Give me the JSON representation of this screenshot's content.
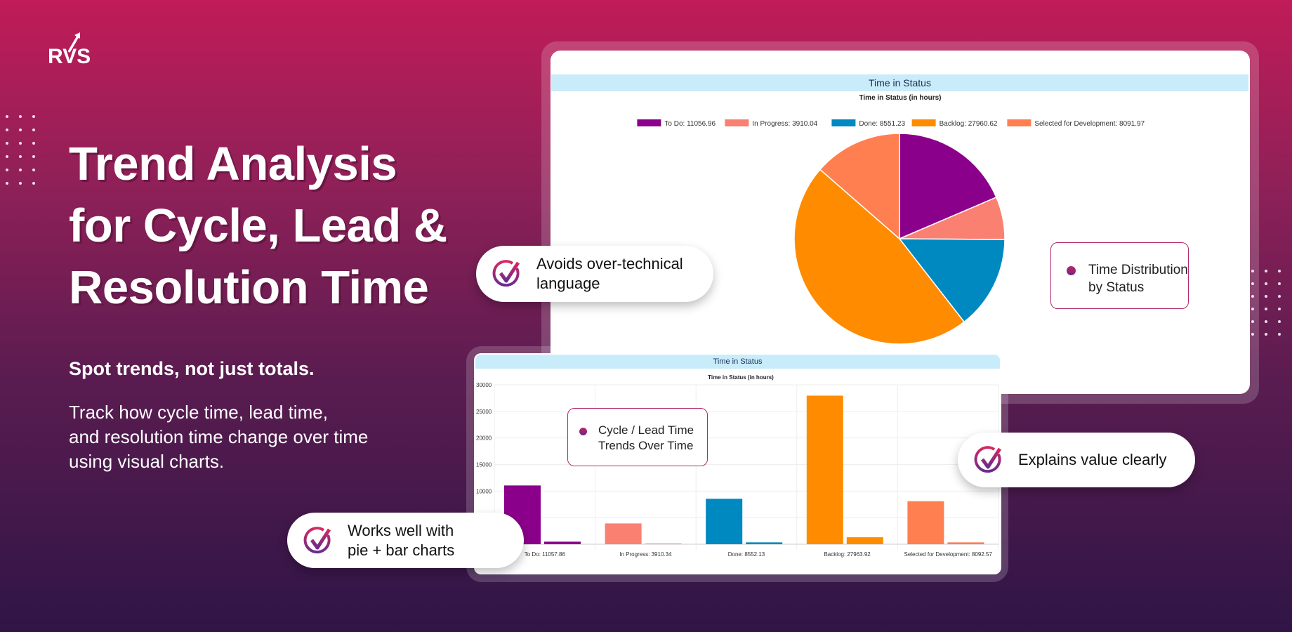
{
  "brand": {
    "logo_text": "RVS"
  },
  "hero": {
    "title_lines": [
      "Trend Analysis",
      "for Cycle, Lead &",
      "Resolution Time"
    ],
    "subtitle": "Spot trends, not just totals.",
    "body_lines": [
      "Track how cycle time, lead time,",
      "and resolution time change over time",
      "using visual charts."
    ]
  },
  "callouts": {
    "avoids": [
      "Avoids over-technical",
      "language"
    ],
    "works": [
      "Works well with",
      "pie + bar charts"
    ],
    "explains": "Explains value clearly",
    "pie_note": [
      "Time Distribution",
      "by Status"
    ],
    "bar_note": [
      "Cycle / Lead Time",
      "Trends Over Time"
    ],
    "check_icon": "check-circle-icon"
  },
  "colors": {
    "todo": "#8b008b",
    "inprogress": "#fa8072",
    "done": "#0088c0",
    "backlog": "#ff8c00",
    "selected": "#ff7f50",
    "band": "#c8ecfa"
  },
  "chart_data": [
    {
      "type": "pie",
      "panel_header": "Time in Status",
      "title": "Time in Status (in hours)",
      "legend_position": "top",
      "labels": [
        "To Do: 11056.96",
        "In Progress: 3910.04",
        "Done: 8551.23",
        "Backlog: 27960.62",
        "Selected for Development: 8091.97"
      ],
      "values": [
        11056.96,
        3910.04,
        8551.23,
        27960.62,
        8091.97
      ]
    },
    {
      "type": "bar",
      "panel_header": "Time in Status",
      "title": "Time in Status (in hours)",
      "categories": [
        "To Do: 11057.86",
        "In Progress: 3910.34",
        "Done: 8552.13",
        "Backlog: 27963.92",
        "Selected for Development: 8092.57"
      ],
      "series": [
        {
          "values": [
            11057.86,
            3910.34,
            8552.13,
            27963.92,
            8092.57
          ]
        },
        {
          "values": [
            480,
            130,
            350,
            1310,
            350
          ]
        }
      ],
      "ylim": [
        0,
        30000
      ],
      "yticks": [
        "30000",
        "25000",
        "20000",
        "15000",
        "10000"
      ],
      "grid": true
    }
  ]
}
